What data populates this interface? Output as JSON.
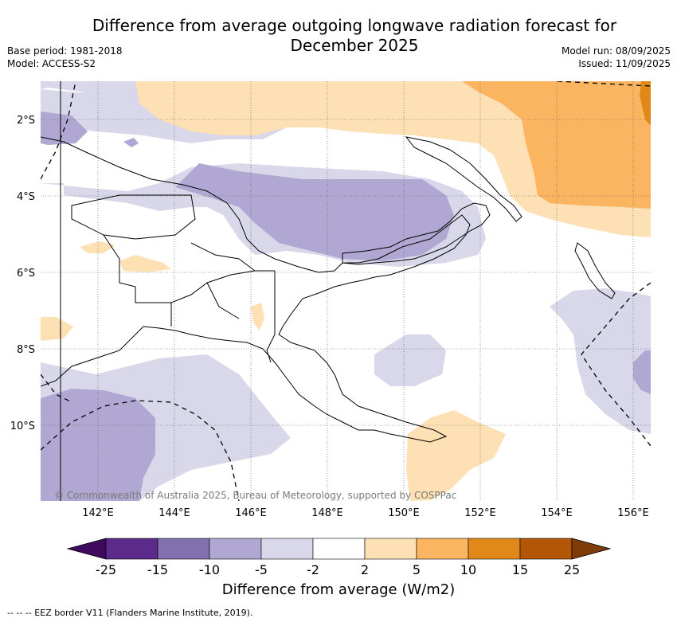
{
  "title_line1": "Difference from average outgoing longwave radiation forecast for",
  "title_line2": "December 2025",
  "meta_left": [
    "Base period: 1981-2018",
    "Model: ACCESS-S2"
  ],
  "meta_right": [
    "Model run: 08/09/2025",
    "Issued: 11/09/2025"
  ],
  "copyright": "© Commonwealth of Australia 2025, Bureau of Meteorology, supported by COSPPac",
  "x_ticks": [
    "142°E",
    "144°E",
    "146°E",
    "148°E",
    "150°E",
    "152°E",
    "154°E",
    "156°E"
  ],
  "y_ticks": [
    "2°S",
    "4°S",
    "6°S",
    "8°S",
    "10°S"
  ],
  "colorbar": {
    "ticks": [
      "-25",
      "-15",
      "-10",
      "-5",
      "-2",
      "2",
      "5",
      "10",
      "15",
      "25"
    ],
    "colors": [
      "#3f0a5e",
      "#5b2a8a",
      "#8070ad",
      "#b0a8d2",
      "#d8d8ea",
      "#ffffff",
      "#fde0b4",
      "#fbb560",
      "#e08818",
      "#b35606",
      "#7f3b08"
    ],
    "label": "Difference from average (W/m2)"
  },
  "footnote": "--  --  -- EEZ border V11 (Flanders Marine Institute, 2019)."
}
